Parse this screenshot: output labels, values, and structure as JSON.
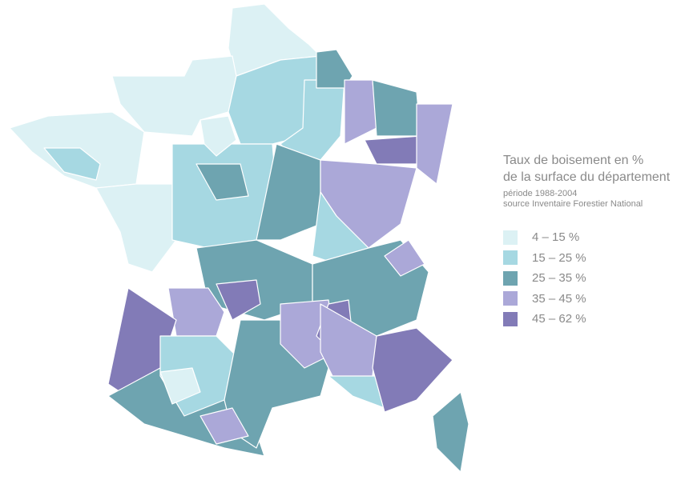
{
  "legend": {
    "title_line1": "Taux de boisement en %",
    "title_line2": "de la surface du département",
    "period": "période 1988-2004",
    "source": "source Inventaire Forestier National",
    "classes": [
      {
        "label": "4 – 15 %",
        "color": "#dcf1f4"
      },
      {
        "label": "15 – 25 %",
        "color": "#a6d8e2"
      },
      {
        "label": "25 – 35 %",
        "color": "#6ea4b0"
      },
      {
        "label": "35 – 45 %",
        "color": "#aba8d8"
      },
      {
        "label": "45 – 62 %",
        "color": "#827bb7"
      }
    ]
  }
}
